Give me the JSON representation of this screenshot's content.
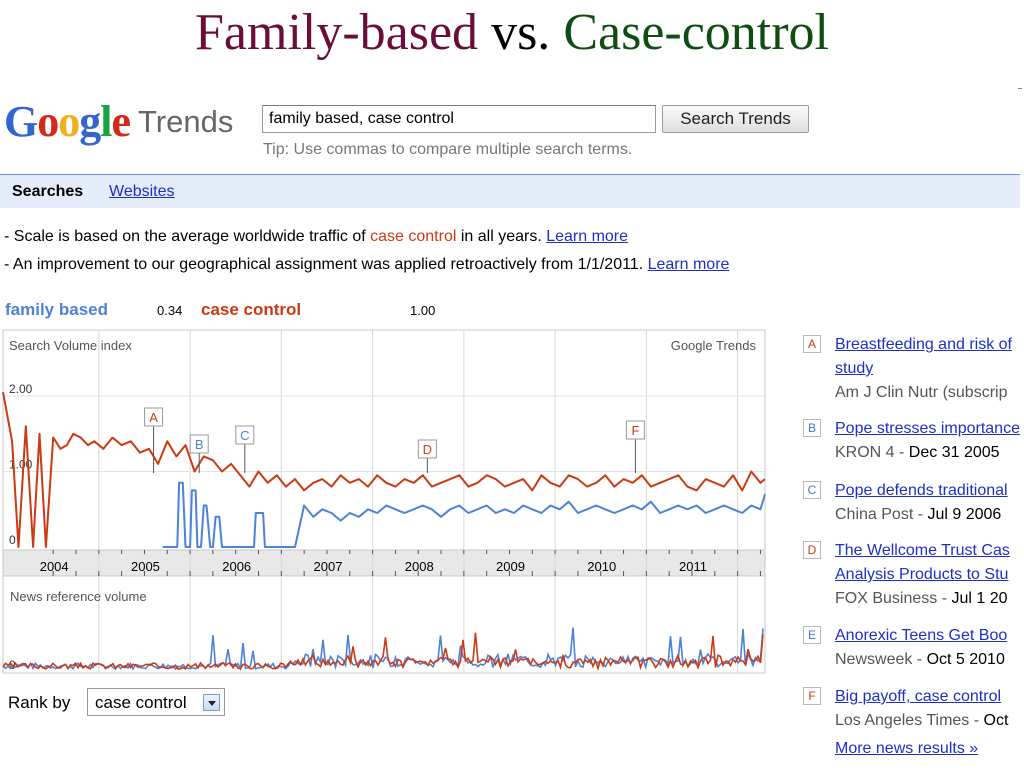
{
  "slide": {
    "title_part1": "Family-based",
    "title_part2": "vs.",
    "title_part3": "Case-control"
  },
  "logo": {
    "google": "Google",
    "trends": "Trends"
  },
  "search": {
    "value": "family based, case control",
    "button_label": "Search Trends",
    "tip": "Tip: Use commas to compare multiple search terms."
  },
  "tabs": {
    "searches": "Searches",
    "websites": "Websites"
  },
  "notes": {
    "line1_pre": "- Scale is based on the average worldwide traffic of ",
    "line1_term": "case control",
    "line1_post": " in all years. ",
    "line2_pre": "- An improvement to our geographical assignment was applied retroactively from 1/1/2011. ",
    "learn_more": "Learn more"
  },
  "legend": {
    "term1": "family based",
    "term1_value": "0.34",
    "term2": "case control",
    "term2_value": "1.00"
  },
  "colors": {
    "case_control": "#cc3a14",
    "family_based": "#4c82d9"
  },
  "chart_data": {
    "type": "line",
    "search_volume": {
      "label": "Search Volume index",
      "watermark": "Google Trends",
      "x_labels": [
        "2004",
        "2005",
        "2006",
        "2007",
        "2008",
        "2009",
        "2010",
        "2011"
      ],
      "y_ticks": [
        "2.00",
        "1.00",
        "0"
      ],
      "ylim": [
        0,
        2.2
      ],
      "x_range": [
        2003.45,
        2011.8
      ],
      "series": [
        {
          "name": "case control",
          "color": "#cc3a14",
          "x": [
            2003.45,
            2003.55,
            2003.62,
            2003.7,
            2003.78,
            2003.85,
            2003.92,
            2004.0,
            2004.08,
            2004.15,
            2004.22,
            2004.3,
            2004.38,
            2004.45,
            2004.55,
            2004.65,
            2004.75,
            2004.85,
            2004.95,
            2005.05,
            2005.15,
            2005.25,
            2005.35,
            2005.45,
            2005.55,
            2005.65,
            2005.75,
            2005.85,
            2005.95,
            2006.05,
            2006.15,
            2006.25,
            2006.35,
            2006.45,
            2006.55,
            2006.65,
            2006.75,
            2006.85,
            2006.95,
            2007.05,
            2007.15,
            2007.25,
            2007.35,
            2007.45,
            2007.55,
            2007.65,
            2007.75,
            2007.85,
            2007.95,
            2008.05,
            2008.15,
            2008.25,
            2008.35,
            2008.45,
            2008.55,
            2008.65,
            2008.75,
            2008.85,
            2008.95,
            2009.05,
            2009.15,
            2009.25,
            2009.35,
            2009.45,
            2009.55,
            2009.65,
            2009.75,
            2009.85,
            2009.95,
            2010.05,
            2010.15,
            2010.25,
            2010.35,
            2010.45,
            2010.55,
            2010.65,
            2010.75,
            2010.85,
            2010.95,
            2011.05,
            2011.15,
            2011.25,
            2011.35,
            2011.45,
            2011.55,
            2011.65,
            2011.75,
            2011.8
          ],
          "values": [
            2.05,
            1.4,
            0.0,
            1.6,
            0.0,
            1.5,
            0.0,
            1.45,
            1.3,
            1.35,
            1.5,
            1.45,
            1.35,
            1.4,
            1.3,
            1.45,
            1.35,
            1.4,
            1.25,
            1.3,
            1.1,
            1.4,
            1.2,
            1.35,
            1.0,
            1.2,
            1.15,
            1.0,
            1.1,
            0.95,
            0.8,
            1.0,
            0.85,
            0.95,
            0.8,
            0.9,
            0.75,
            0.85,
            0.9,
            0.8,
            0.95,
            0.85,
            0.9,
            0.8,
            0.95,
            0.85,
            0.8,
            0.9,
            0.85,
            0.95,
            0.8,
            0.85,
            0.9,
            0.95,
            0.8,
            0.85,
            0.95,
            0.9,
            0.8,
            0.85,
            0.9,
            0.75,
            0.95,
            0.85,
            0.8,
            0.95,
            0.9,
            0.8,
            0.85,
            0.95,
            0.8,
            0.9,
            0.85,
            0.95,
            0.8,
            0.85,
            0.9,
            0.95,
            0.8,
            0.75,
            0.9,
            0.85,
            0.8,
            0.95,
            0.75,
            1.0,
            0.85,
            0.9
          ]
        },
        {
          "name": "family based",
          "color": "#4c82d9",
          "x": [
            2005.2,
            2005.36,
            2005.38,
            2005.42,
            2005.45,
            2005.5,
            2005.52,
            2005.56,
            2005.58,
            2005.62,
            2005.65,
            2005.68,
            2005.72,
            2005.75,
            2005.78,
            2005.82,
            2005.85,
            2005.9,
            2006.0,
            2006.1,
            2006.2,
            2006.22,
            2006.25,
            2006.3,
            2006.32,
            2006.35,
            2006.45,
            2006.55,
            2006.65,
            2006.75,
            2006.85,
            2006.95,
            2007.05,
            2007.15,
            2007.25,
            2007.35,
            2007.45,
            2007.55,
            2007.65,
            2007.75,
            2007.85,
            2007.95,
            2008.05,
            2008.15,
            2008.25,
            2008.35,
            2008.45,
            2008.55,
            2008.65,
            2008.75,
            2008.85,
            2008.95,
            2009.05,
            2009.15,
            2009.25,
            2009.35,
            2009.45,
            2009.55,
            2009.65,
            2009.75,
            2009.85,
            2009.95,
            2010.05,
            2010.15,
            2010.25,
            2010.35,
            2010.45,
            2010.55,
            2010.65,
            2010.75,
            2010.85,
            2010.95,
            2011.05,
            2011.15,
            2011.25,
            2011.35,
            2011.45,
            2011.55,
            2011.65,
            2011.75,
            2011.8
          ],
          "values": [
            0.0,
            0.0,
            0.85,
            0.85,
            0.0,
            0.0,
            0.75,
            0.75,
            0.0,
            0.0,
            0.55,
            0.55,
            0.0,
            0.0,
            0.4,
            0.4,
            0.0,
            0.0,
            0.0,
            0.0,
            0.0,
            0.45,
            0.45,
            0.45,
            0.0,
            0.0,
            0.0,
            0.0,
            0.0,
            0.55,
            0.4,
            0.5,
            0.45,
            0.35,
            0.45,
            0.4,
            0.5,
            0.45,
            0.55,
            0.5,
            0.45,
            0.5,
            0.55,
            0.5,
            0.4,
            0.5,
            0.55,
            0.45,
            0.5,
            0.55,
            0.45,
            0.5,
            0.45,
            0.55,
            0.5,
            0.45,
            0.55,
            0.5,
            0.6,
            0.45,
            0.5,
            0.55,
            0.5,
            0.45,
            0.5,
            0.55,
            0.5,
            0.6,
            0.45,
            0.5,
            0.55,
            0.5,
            0.55,
            0.45,
            0.5,
            0.55,
            0.5,
            0.45,
            0.55,
            0.5,
            0.7
          ]
        }
      ],
      "annotations": [
        {
          "letter": "A",
          "x": 2005.1,
          "color": "#cc3a14"
        },
        {
          "letter": "B",
          "x": 2005.6,
          "color": "#4c82d9"
        },
        {
          "letter": "C",
          "x": 2006.1,
          "color": "#4c82d9"
        },
        {
          "letter": "D",
          "x": 2008.1,
          "color": "#cc3a14"
        },
        {
          "letter": "F",
          "x": 2010.38,
          "color": "#cc3a14"
        }
      ]
    },
    "news_volume": {
      "label": "News reference volume",
      "y_ticks": [
        "0"
      ],
      "series": [
        {
          "name": "case control",
          "color": "#cc3a14"
        },
        {
          "name": "family based",
          "color": "#4c82d9"
        }
      ]
    }
  },
  "rank": {
    "label": "Rank by",
    "selected": "case control"
  },
  "news": [
    {
      "letter": "A",
      "color": "red",
      "title1": "Breastfeeding and risk of",
      "title2": "study",
      "source": "Am J Clin Nutr (subscrip",
      "date": ""
    },
    {
      "letter": "B",
      "color": "blue",
      "title1": "Pope stresses importance",
      "title2": "",
      "source": "KRON 4 - ",
      "date": "Dec 31 2005"
    },
    {
      "letter": "C",
      "color": "blue",
      "title1": "Pope defends traditional",
      "title2": "",
      "source": "China Post - ",
      "date": "Jul 9 2006"
    },
    {
      "letter": "D",
      "color": "red",
      "title1": "The Wellcome Trust Cas",
      "title2": "Analysis Products to Stu",
      "source": "FOX Business - ",
      "date": "Jul 1 20"
    },
    {
      "letter": "E",
      "color": "blue",
      "title1": "Anorexic Teens Get Boo",
      "title2": "",
      "source": "Newsweek - ",
      "date": "Oct 5 2010"
    },
    {
      "letter": "F",
      "color": "red",
      "title1": "Big payoff, case control",
      "title2": "",
      "source": "Los Angeles Times - ",
      "date": "Oct"
    }
  ],
  "more_news": "More news results »"
}
